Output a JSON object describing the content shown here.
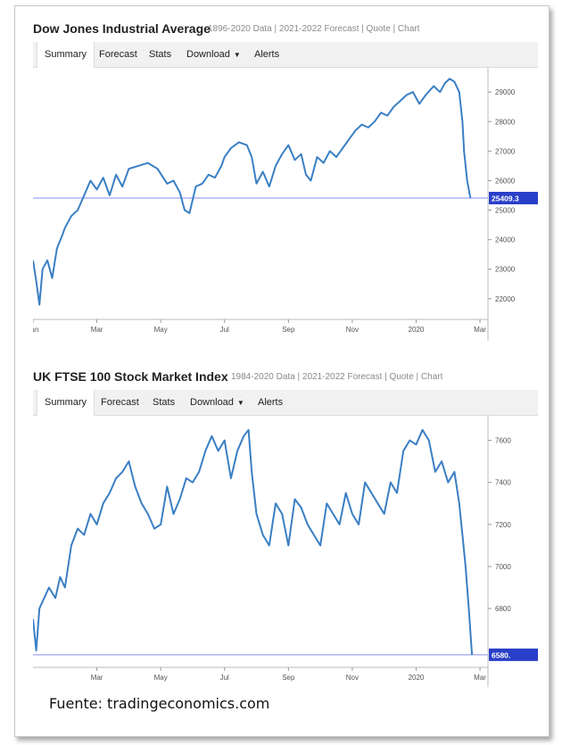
{
  "charts": [
    {
      "title": "Dow Jones Industrial Average",
      "subtitle": "1896-2020 Data | 2021-2022 Forecast | Quote | Chart",
      "tabs": [
        "Summary",
        "Forecast",
        "Stats",
        "Download",
        "Alerts"
      ],
      "current_value_label": "25409.3",
      "colors": {
        "line": "#3a7fc4",
        "reference_line": "#9fa5f2",
        "badge": "#2a3fc9"
      }
    },
    {
      "title": "UK FTSE 100 Stock Market Index",
      "subtitle": "1984-2020 Data | 2021-2022 Forecast | Quote | Chart",
      "tabs": [
        "Summary",
        "Forecast",
        "Stats",
        "Download",
        "Alerts"
      ],
      "current_value_label": "6580.",
      "colors": {
        "line": "#3a7fc4",
        "reference_line": "#9fa5f2",
        "badge": "#2a3fc9"
      }
    }
  ],
  "chart_data": [
    {
      "type": "line",
      "title": "Dow Jones Industrial Average",
      "x_tick_labels": [
        "Jan",
        "Mar",
        "May",
        "Jul",
        "Sep",
        "Nov",
        "2020",
        "Mar"
      ],
      "x_ticks_months": [
        0,
        2,
        4,
        6,
        8,
        10,
        12,
        14
      ],
      "xlim": [
        0,
        14.25
      ],
      "y_ticks": [
        22000,
        23000,
        24000,
        25000,
        26000,
        27000,
        28000,
        29000
      ],
      "ylim": [
        21300,
        29700
      ],
      "reference_value": 25409.3,
      "grid": false,
      "series": [
        {
          "x": [
            0,
            0.1,
            0.2,
            0.3,
            0.45,
            0.6,
            0.75,
            0.9,
            1.0,
            1.2,
            1.4,
            1.6,
            1.8,
            2.0,
            2.2,
            2.4,
            2.6,
            2.8,
            3.0,
            3.3,
            3.6,
            3.9,
            4.2,
            4.4,
            4.6,
            4.75,
            4.9,
            5.1,
            5.3,
            5.5,
            5.7,
            5.9,
            6.0,
            6.2,
            6.45,
            6.7,
            6.85,
            7.0,
            7.2,
            7.4,
            7.6,
            7.8,
            8.0,
            8.2,
            8.4,
            8.55,
            8.7,
            8.9,
            9.1,
            9.3,
            9.5,
            9.7,
            9.9,
            10.1,
            10.3,
            10.5,
            10.7,
            10.9,
            11.1,
            11.3,
            11.5,
            11.7,
            11.9,
            12.1,
            12.3,
            12.55,
            12.75,
            12.9,
            13.05,
            13.2,
            13.35,
            13.45,
            13.5,
            13.6,
            13.7
          ],
          "y": [
            23300,
            22600,
            21800,
            23000,
            23300,
            22700,
            23700,
            24100,
            24400,
            24800,
            25000,
            25500,
            26000,
            25700,
            26100,
            25500,
            26200,
            25800,
            26400,
            26500,
            26600,
            26400,
            25900,
            26000,
            25600,
            25000,
            24900,
            25800,
            25900,
            26200,
            26100,
            26500,
            26800,
            27100,
            27300,
            27200,
            26800,
            25900,
            26300,
            25800,
            26500,
            26900,
            27200,
            26700,
            26900,
            26200,
            26000,
            26800,
            26600,
            27000,
            26800,
            27100,
            27400,
            27700,
            27900,
            27800,
            28000,
            28300,
            28200,
            28500,
            28700,
            28900,
            29000,
            28600,
            28900,
            29200,
            29000,
            29300,
            29450,
            29350,
            29000,
            28000,
            27000,
            26000,
            25409
          ]
        }
      ]
    },
    {
      "type": "line",
      "title": "UK FTSE 100 Stock Market Index",
      "x_tick_labels": [
        "Mar",
        "May",
        "Jul",
        "Sep",
        "Nov",
        "2020",
        "Mar"
      ],
      "x_ticks_months": [
        2,
        4,
        6,
        8,
        10,
        12,
        14
      ],
      "xlim": [
        0,
        14.25
      ],
      "y_ticks": [
        6800,
        7000,
        7200,
        7400,
        7600
      ],
      "ylim": [
        6520,
        7700
      ],
      "reference_value": 6580,
      "grid": false,
      "series": [
        {
          "x": [
            0,
            0.1,
            0.2,
            0.35,
            0.5,
            0.7,
            0.85,
            1.0,
            1.2,
            1.4,
            1.6,
            1.8,
            2.0,
            2.2,
            2.4,
            2.6,
            2.8,
            3.0,
            3.2,
            3.4,
            3.6,
            3.8,
            4.0,
            4.2,
            4.4,
            4.6,
            4.8,
            5.0,
            5.2,
            5.4,
            5.6,
            5.8,
            6.0,
            6.2,
            6.4,
            6.6,
            6.75,
            6.85,
            7.0,
            7.2,
            7.4,
            7.6,
            7.8,
            8.0,
            8.2,
            8.4,
            8.6,
            8.8,
            9.0,
            9.2,
            9.4,
            9.6,
            9.8,
            10.0,
            10.2,
            10.4,
            10.6,
            10.8,
            11.0,
            11.2,
            11.4,
            11.6,
            11.8,
            12.0,
            12.2,
            12.4,
            12.6,
            12.8,
            13.0,
            13.2,
            13.35,
            13.45,
            13.55,
            13.65,
            13.75
          ],
          "y": [
            6750,
            6600,
            6800,
            6850,
            6900,
            6850,
            6950,
            6900,
            7100,
            7180,
            7150,
            7250,
            7200,
            7300,
            7350,
            7420,
            7450,
            7500,
            7380,
            7300,
            7250,
            7180,
            7200,
            7380,
            7250,
            7320,
            7420,
            7400,
            7450,
            7550,
            7620,
            7550,
            7600,
            7420,
            7550,
            7620,
            7650,
            7450,
            7250,
            7150,
            7100,
            7300,
            7250,
            7100,
            7320,
            7280,
            7200,
            7150,
            7100,
            7300,
            7250,
            7200,
            7350,
            7250,
            7200,
            7400,
            7350,
            7300,
            7250,
            7400,
            7350,
            7550,
            7600,
            7580,
            7650,
            7600,
            7450,
            7500,
            7400,
            7450,
            7300,
            7150,
            7000,
            6800,
            6580
          ]
        }
      ]
    }
  ],
  "source_note": "Fuente: tradingeconomics.com"
}
